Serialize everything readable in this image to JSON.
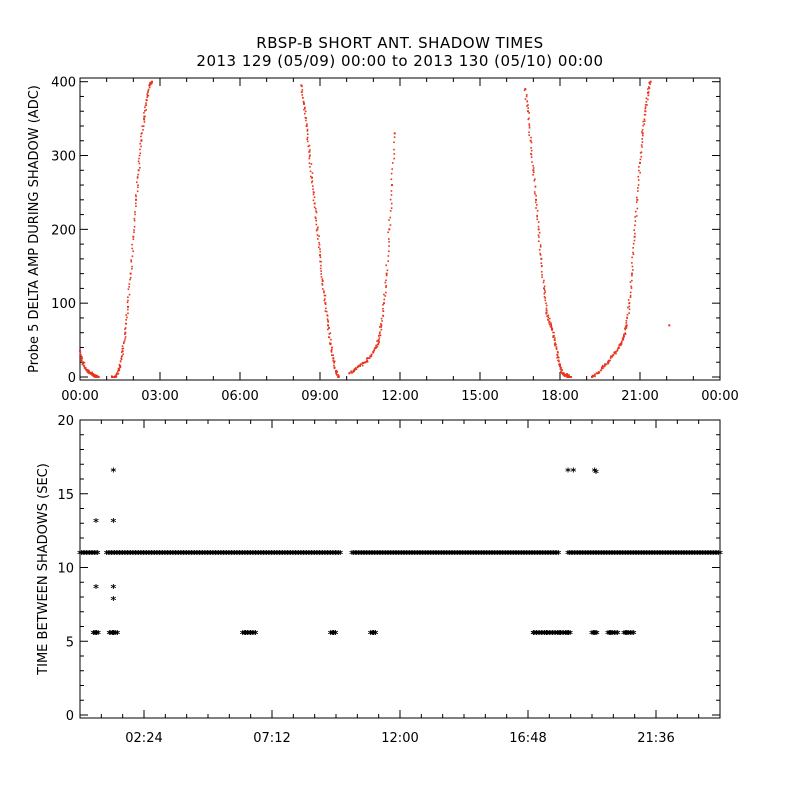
{
  "header": {
    "title": "RBSP-B SHORT ANT. SHADOW TIMES",
    "subtitle": "2013 129 (05/09) 00:00 to 2013 130 (05/10) 00:00"
  },
  "chart_data": [
    {
      "type": "scatter",
      "title": "RBSP-B SHORT ANT. SHADOW TIMES",
      "subtitle": "2013 129 (05/09) 00:00 to 2013 130 (05/10) 00:00",
      "xlabel": "",
      "ylabel": "Probe 5 DELTA AMP DURING SHADOW (ADC)",
      "xlim_hours": [
        0,
        24
      ],
      "ylim": [
        0,
        400
      ],
      "xticks": [
        "00:00",
        "03:00",
        "06:00",
        "09:00",
        "12:00",
        "15:00",
        "18:00",
        "21:00",
        "00:00"
      ],
      "yticks": [
        "0",
        "100",
        "200",
        "300",
        "400"
      ],
      "color": "#e8341c",
      "grid": false,
      "series": [
        {
          "x": [
            0.0,
            0.1,
            0.2,
            0.3,
            0.4,
            0.5,
            0.6,
            0.7,
            1.2,
            1.3,
            1.4,
            1.5,
            1.6,
            1.7,
            1.8,
            1.9,
            2.0,
            2.1,
            2.2,
            2.3,
            2.4,
            2.5,
            2.6,
            2.7
          ],
          "y": [
            35,
            20,
            12,
            8,
            5,
            3,
            1,
            0,
            0,
            0,
            5,
            15,
            35,
            60,
            95,
            140,
            190,
            240,
            280,
            320,
            350,
            375,
            395,
            400
          ]
        },
        {
          "x": [
            8.3,
            8.4,
            8.5,
            8.6,
            8.7,
            8.8,
            8.9,
            9.0,
            9.1,
            9.2,
            9.3,
            9.4,
            9.5,
            9.6,
            9.7
          ],
          "y": [
            395,
            370,
            340,
            305,
            270,
            235,
            200,
            165,
            130,
            100,
            70,
            45,
            25,
            8,
            0
          ]
        },
        {
          "x": [
            10.1,
            10.3,
            10.5,
            10.7,
            10.9,
            11.1,
            11.2,
            11.3,
            11.4,
            11.5,
            11.6,
            11.7,
            11.8
          ],
          "y": [
            5,
            10,
            15,
            20,
            28,
            40,
            50,
            70,
            100,
            140,
            200,
            260,
            330
          ]
        },
        {
          "x": [
            16.7,
            16.8,
            16.9,
            17.0,
            17.1,
            17.2,
            17.3,
            17.4,
            17.5,
            17.6,
            17.7,
            17.8,
            17.9,
            18.0,
            18.1,
            18.2,
            18.3,
            18.4
          ],
          "y": [
            390,
            360,
            320,
            280,
            240,
            200,
            160,
            120,
            90,
            75,
            65,
            50,
            30,
            15,
            5,
            3,
            1,
            0
          ]
        },
        {
          "x": [
            19.2,
            19.4,
            19.6,
            19.8,
            20.0,
            20.2,
            20.3,
            20.4,
            20.5,
            20.6,
            20.7,
            20.8,
            20.9,
            21.0,
            21.1,
            21.2,
            21.3,
            21.4,
            22.1
          ],
          "y": [
            0,
            5,
            12,
            20,
            30,
            40,
            45,
            55,
            70,
            100,
            140,
            190,
            240,
            290,
            330,
            360,
            385,
            400,
            70
          ]
        }
      ]
    },
    {
      "type": "scatter",
      "xlabel": "",
      "ylabel": "TIME BETWEEN SHADOWS (SEC)",
      "xlim_hours": [
        0,
        24
      ],
      "ylim": [
        0,
        20
      ],
      "xtick_hours": [
        2.4,
        7.2,
        12.0,
        16.8,
        21.6
      ],
      "xticks": [
        "02:24",
        "07:12",
        "12:00",
        "16:48",
        "21:36"
      ],
      "yticks": [
        "0",
        "5",
        "10",
        "15",
        "20"
      ],
      "marker": "*",
      "color": "#000000",
      "grid": false,
      "series": [
        {
          "name_note": "",
          "x": [
            0.6,
            0.6,
            0.6,
            1.25,
            1.25,
            1.25,
            1.25,
            1.25,
            6.2,
            6.4,
            9.5,
            11.0,
            17.0,
            17.5,
            18.0,
            18.3,
            19.3,
            19.9,
            20.5,
            18.3,
            18.5,
            19.3,
            19.35
          ],
          "y": [
            13.1,
            8.6,
            5.5,
            16.5,
            13.1,
            8.6,
            7.8,
            5.5,
            5.5,
            5.5,
            5.5,
            5.5,
            5.5,
            5.5,
            5.5,
            5.5,
            5.5,
            5.5,
            5.5,
            16.5,
            16.5,
            16.5,
            16.4
          ]
        }
      ],
      "bands": [
        {
          "y": 10.9,
          "x_from": 0.0,
          "x_to": 0.7
        },
        {
          "y": 10.9,
          "x_from": 1.0,
          "x_to": 9.8
        },
        {
          "y": 10.9,
          "x_from": 10.2,
          "x_to": 18.0
        },
        {
          "y": 10.9,
          "x_from": 18.3,
          "x_to": 24.0
        }
      ],
      "bands_5_5": [
        {
          "x_from": 0.5,
          "x_to": 0.7
        },
        {
          "x_from": 1.1,
          "x_to": 1.45
        },
        {
          "x_from": 6.1,
          "x_to": 6.6
        },
        {
          "x_from": 9.4,
          "x_to": 9.6
        },
        {
          "x_from": 10.9,
          "x_to": 11.1
        },
        {
          "x_from": 17.0,
          "x_to": 18.4
        },
        {
          "x_from": 19.2,
          "x_to": 19.4
        },
        {
          "x_from": 19.8,
          "x_to": 20.2
        },
        {
          "x_from": 20.4,
          "x_to": 20.8
        }
      ]
    }
  ]
}
